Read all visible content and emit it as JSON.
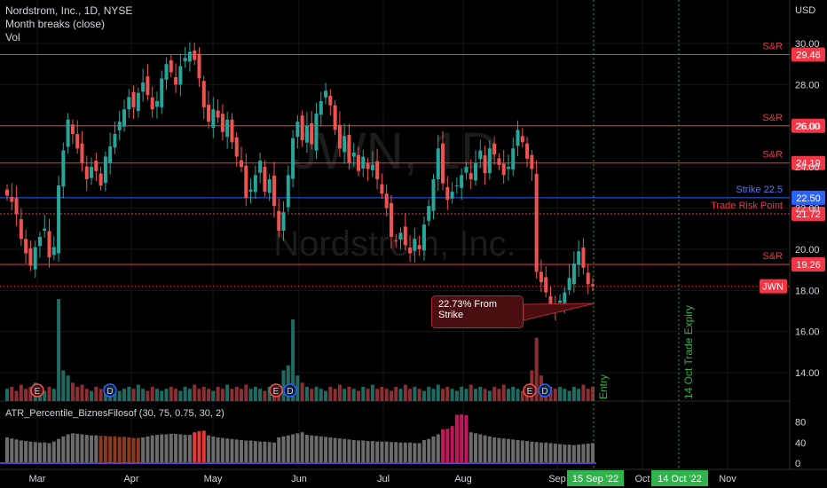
{
  "header": {
    "symbol_line": "Nordstrom, Inc., 1D, NYSE",
    "study_1": "Month breaks (close)",
    "study_2": "Vol",
    "currency": "USD"
  },
  "watermark": {
    "ticker": "JWN, 1D",
    "name": "Nordstrom, Inc."
  },
  "colors": {
    "up": "#26a69a",
    "down": "#ef5350",
    "sr_line": "#f23645",
    "strike_line": "#2962ff",
    "background": "#000000"
  },
  "chart_data": {
    "type": "candlestick",
    "x_axis": [
      "Mar",
      "Apr",
      "May",
      "Jun",
      "Jul",
      "Aug",
      "Sep",
      "Oct",
      "Nov"
    ],
    "x_axis_badges": [
      "15 Sep '22",
      "14 Oct '22"
    ],
    "y_axis_ticks": [
      "30.00",
      "28.00",
      "26.00",
      "24.00",
      "22.00",
      "20.00",
      "18.00",
      "16.00",
      "14.00"
    ],
    "ylim": [
      12.8,
      30.8
    ],
    "horizontal_levels": [
      {
        "label": "S&R",
        "value": 29.46,
        "price_tag": "29.46"
      },
      {
        "label": "S&R",
        "value": 26.0,
        "price_tag": "26.00"
      },
      {
        "label": "S&R",
        "value": 24.19,
        "price_tag": "24.19"
      },
      {
        "label": "Strike 22.5",
        "value": 22.5,
        "price_tag": "22.50"
      },
      {
        "label": "Trade Risk Point",
        "value": 21.72,
        "price_tag": "21.72"
      },
      {
        "label": "S&R",
        "value": 19.26,
        "price_tag": "19.26"
      }
    ],
    "last_price_label": "JWN",
    "last_price": 18.2,
    "vertical_markers": [
      "Entry",
      "14 Oct Trade Expiry"
    ],
    "callout": "22.73% From Strike",
    "events": [
      "E",
      "D",
      "E",
      "D",
      "E",
      "D"
    ],
    "close": [
      22.6,
      22.3,
      21.7,
      20.5,
      19.8,
      19.2,
      20.1,
      20.6,
      21.0,
      19.6,
      20.1,
      23.1,
      24.8,
      26.3,
      25.6,
      24.9,
      24.2,
      23.4,
      24.0,
      23.8,
      23.1,
      24.5,
      25.0,
      25.6,
      26.2,
      26.8,
      27.4,
      26.9,
      27.6,
      28.1,
      27.5,
      26.8,
      27.2,
      28.3,
      29.0,
      28.6,
      28.0,
      28.9,
      29.3,
      29.6,
      29.2,
      28.3,
      26.9,
      26.2,
      26.8,
      26.4,
      25.7,
      26.3,
      25.2,
      24.5,
      24.0,
      22.5,
      22.9,
      23.6,
      24.3,
      22.8,
      23.4,
      22.1,
      20.9,
      21.8,
      23.6,
      25.4,
      26.2,
      25.3,
      26.0,
      25.1,
      26.6,
      27.2,
      27.7,
      27.0,
      25.8,
      24.9,
      25.5,
      24.2,
      24.7,
      23.8,
      24.5,
      23.9,
      24.1,
      23.4,
      22.7,
      22.0,
      20.6,
      20.4,
      20.8,
      20.2,
      19.8,
      20.5,
      20.0,
      21.2,
      22.1,
      23.4,
      24.9,
      23.2,
      22.4,
      22.8,
      23.1,
      23.6,
      24.0,
      23.4,
      24.2,
      24.8,
      23.7,
      24.9,
      24.6,
      24.1,
      23.6,
      24.0,
      24.9,
      25.8,
      25.2,
      24.4,
      23.9,
      18.9,
      18.4,
      17.9,
      17.3,
      17.1,
      17.5,
      17.9,
      18.6,
      19.3,
      19.9,
      19.1,
      18.3,
      18.2
    ],
    "volume_rel": [
      0.12,
      0.14,
      0.1,
      0.16,
      0.12,
      0.14,
      0.18,
      0.12,
      0.1,
      0.14,
      0.12,
      1.0,
      0.3,
      0.25,
      0.18,
      0.14,
      0.16,
      0.12,
      0.1,
      0.14,
      0.12,
      0.15,
      0.14,
      0.12,
      0.1,
      0.12,
      0.14,
      0.12,
      0.16,
      0.12,
      0.1,
      0.14,
      0.12,
      0.1,
      0.12,
      0.14,
      0.12,
      0.1,
      0.14,
      0.12,
      0.16,
      0.12,
      0.14,
      0.12,
      0.1,
      0.14,
      0.12,
      0.16,
      0.12,
      0.14,
      0.12,
      0.16,
      0.12,
      0.14,
      0.12,
      0.1,
      0.14,
      0.12,
      0.16,
      0.3,
      0.35,
      0.8,
      0.25,
      0.18,
      0.14,
      0.12,
      0.14,
      0.12,
      0.1,
      0.14,
      0.12,
      0.16,
      0.12,
      0.14,
      0.12,
      0.1,
      0.14,
      0.12,
      0.16,
      0.12,
      0.14,
      0.12,
      0.1,
      0.14,
      0.12,
      0.16,
      0.12,
      0.14,
      0.12,
      0.1,
      0.14,
      0.12,
      0.16,
      0.12,
      0.14,
      0.12,
      0.1,
      0.14,
      0.12,
      0.16,
      0.12,
      0.14,
      0.12,
      0.1,
      0.14,
      0.12,
      0.16,
      0.12,
      0.14,
      0.12,
      0.1,
      0.14,
      0.3,
      0.62,
      0.25,
      0.16,
      0.14,
      0.12,
      0.14,
      0.12,
      0.1,
      0.14,
      0.12,
      0.16,
      0.12,
      0.14
    ],
    "indicator": {
      "name": "ATR_Percentile_BiznesFilosof (30, 75, 0.75, 30, 2)",
      "y_ticks": [
        "80",
        "40",
        "0"
      ],
      "ylim": [
        0,
        100
      ],
      "values": [
        50,
        48,
        46,
        44,
        43,
        42,
        41,
        40,
        40,
        39,
        42,
        47,
        52,
        56,
        58,
        57,
        56,
        55,
        54,
        54,
        53,
        53,
        52,
        52,
        51,
        51,
        50,
        49,
        49,
        50,
        52,
        54,
        55,
        56,
        56,
        57,
        57,
        56,
        55,
        55,
        60,
        62,
        63,
        54,
        52,
        50,
        49,
        48,
        47,
        46,
        45,
        44,
        44,
        43,
        42,
        42,
        41,
        40,
        50,
        52,
        54,
        56,
        58,
        60,
        55,
        54,
        53,
        52,
        51,
        50,
        49,
        48,
        47,
        46,
        45,
        44,
        44,
        43,
        43,
        42,
        42,
        42,
        41,
        41,
        40,
        40,
        40,
        39,
        39,
        45,
        47,
        52,
        56,
        66,
        67,
        72,
        94,
        95,
        93,
        60,
        58,
        56,
        54,
        52,
        50,
        49,
        48,
        47,
        46,
        45,
        44,
        43,
        42,
        41,
        40,
        40,
        39,
        38,
        37,
        36,
        36,
        35,
        36,
        37,
        38,
        39
      ],
      "highlight": [
        0,
        0,
        0,
        0,
        0,
        0,
        0,
        0,
        0,
        0,
        0,
        0,
        0,
        0,
        0,
        0,
        0,
        0,
        0,
        0,
        0,
        0,
        0,
        0,
        0,
        0,
        0,
        0,
        0,
        0,
        0,
        0,
        0,
        0,
        0,
        0,
        0,
        0,
        0,
        0,
        1,
        1,
        1,
        0,
        0,
        0,
        0,
        0,
        0,
        0,
        0,
        0,
        0,
        0,
        0,
        0,
        0,
        0,
        0,
        0,
        0,
        0,
        0,
        0,
        0,
        0,
        0,
        0,
        0,
        0,
        0,
        0,
        0,
        0,
        0,
        0,
        0,
        0,
        0,
        0,
        0,
        0,
        0,
        0,
        0,
        0,
        0,
        0,
        0,
        0,
        0,
        0,
        0,
        2,
        2,
        2,
        2,
        2,
        2,
        0,
        0,
        0,
        0,
        0,
        0,
        0,
        0,
        0,
        0,
        0,
        0,
        0,
        0,
        0,
        0,
        0,
        0,
        0,
        0,
        0,
        0,
        0,
        0,
        0,
        0,
        0
      ]
    }
  }
}
